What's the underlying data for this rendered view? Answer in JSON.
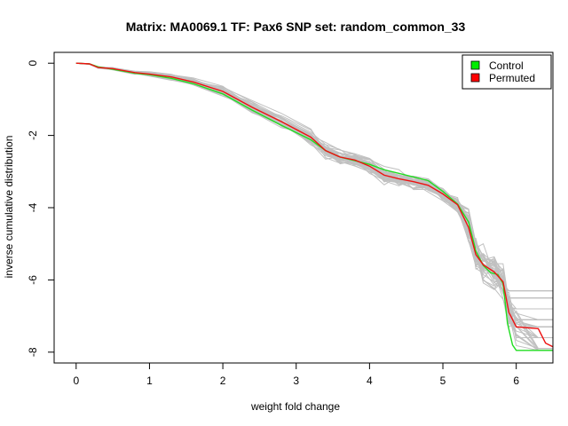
{
  "chart_data": {
    "type": "line",
    "title": "Matrix: MA0069.1 TF: Pax6 SNP set: random_common_33",
    "xlabel": "weight fold change",
    "ylabel": "inverse cumulative distribution",
    "xlim": [
      -0.3,
      6.5
    ],
    "ylim": [
      -8.3,
      0.3
    ],
    "xticks": [
      0,
      1,
      2,
      3,
      4,
      5,
      6
    ],
    "yticks": [
      0,
      -2,
      -4,
      -6,
      -8
    ],
    "grid": false,
    "legend_position": "top-right",
    "legend": [
      {
        "label": "Control",
        "color": "#00ee00"
      },
      {
        "label": "Permuted",
        "color": "#ff0000"
      }
    ],
    "background_series": {
      "name": "permutations",
      "color": "#c0c0c0",
      "count": 40
    },
    "series": [
      {
        "name": "Control",
        "color": "#22dd22",
        "x": [
          0,
          0.18,
          0.3,
          0.5,
          0.8,
          1.0,
          1.3,
          1.6,
          2.0,
          2.4,
          2.8,
          3.2,
          3.4,
          3.6,
          3.8,
          4.0,
          4.2,
          4.4,
          4.6,
          4.8,
          5.0,
          5.2,
          5.35,
          5.45,
          5.55,
          5.65,
          5.75,
          5.82,
          5.88,
          5.95,
          6.0,
          6.5
        ],
        "y": [
          0,
          -0.02,
          -0.1,
          -0.17,
          -0.28,
          -0.32,
          -0.42,
          -0.57,
          -0.85,
          -1.3,
          -1.72,
          -2.12,
          -2.42,
          -2.6,
          -2.7,
          -2.8,
          -2.95,
          -3.05,
          -3.15,
          -3.25,
          -3.55,
          -3.9,
          -4.4,
          -5.2,
          -5.6,
          -5.8,
          -5.85,
          -6.1,
          -7.2,
          -7.8,
          -7.95,
          -7.95
        ]
      },
      {
        "name": "Permuted",
        "color": "#ee1111",
        "x": [
          0,
          0.18,
          0.3,
          0.5,
          0.8,
          1.0,
          1.3,
          1.6,
          2.0,
          2.4,
          2.8,
          3.2,
          3.4,
          3.6,
          3.8,
          4.0,
          4.2,
          4.4,
          4.6,
          4.8,
          5.0,
          5.2,
          5.35,
          5.45,
          5.55,
          5.7,
          5.82,
          5.9,
          6.0,
          6.3,
          6.4,
          6.5
        ],
        "y": [
          0,
          -0.02,
          -0.12,
          -0.15,
          -0.26,
          -0.3,
          -0.38,
          -0.52,
          -0.78,
          -1.22,
          -1.62,
          -2.05,
          -2.42,
          -2.6,
          -2.68,
          -2.85,
          -3.1,
          -3.2,
          -3.28,
          -3.38,
          -3.62,
          -3.92,
          -4.55,
          -5.3,
          -5.58,
          -5.78,
          -6.05,
          -6.9,
          -7.3,
          -7.35,
          -7.75,
          -7.85
        ]
      }
    ]
  }
}
